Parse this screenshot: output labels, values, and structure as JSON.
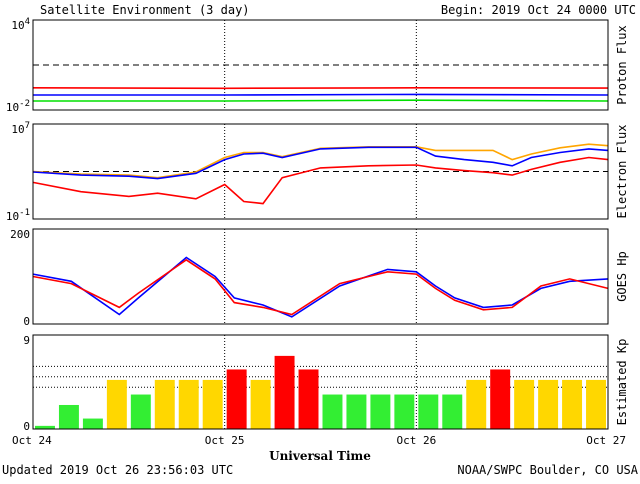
{
  "header": {
    "title": "Satellite Environment (3 day)",
    "begin": "Begin:  2019 Oct 24 0000 UTC"
  },
  "footer": {
    "updated": "Updated 2019 Oct 26 23:56:03 UTC",
    "credit": "NOAA/SWPC Boulder, CO USA"
  },
  "x_axis": {
    "title": "Universal Time",
    "ticks": [
      "Oct 24",
      "Oct 25",
      "Oct 26",
      "Oct 27"
    ]
  },
  "colors": {
    "red": "#ff0000",
    "blue": "#0000ff",
    "green": "#00e000",
    "orange": "#ffa500",
    "kp_red": "#ff0000",
    "kp_yellow": "#ffd700",
    "kp_green": "#33ee33"
  },
  "chart_data": [
    {
      "type": "line",
      "ylabel": "Proton Flux",
      "scale": "log",
      "ylim": [
        0.01,
        10000
      ],
      "ytick_labels": [
        {
          "base": "10",
          "exp": "4"
        },
        {
          "base": "10",
          "exp": "-2"
        }
      ],
      "threshold": 10,
      "x": [
        0,
        1,
        2,
        3
      ],
      "series": [
        {
          "color": "#ff0000",
          "values": [
            0.3,
            0.28,
            0.3,
            0.29
          ]
        },
        {
          "color": "#0000ff",
          "values": [
            0.1,
            0.1,
            0.11,
            0.1
          ]
        },
        {
          "color": "#00e000",
          "values": [
            0.04,
            0.04,
            0.045,
            0.04
          ]
        }
      ]
    },
    {
      "type": "line",
      "ylabel": "Electron Flux",
      "scale": "log",
      "ylim": [
        0.1,
        10000000
      ],
      "ytick_labels": [
        {
          "base": "10",
          "exp": "7"
        },
        {
          "base": "10",
          "exp": "-1"
        }
      ],
      "threshold": 1000,
      "x": [
        0,
        0.25,
        0.5,
        0.65,
        0.85,
        1.0,
        1.1,
        1.2,
        1.3,
        1.5,
        1.75,
        2.0,
        2.1,
        2.25,
        2.4,
        2.5,
        2.6,
        2.75,
        2.9,
        3.0
      ],
      "series": [
        {
          "color": "#ffa500",
          "values": [
            1000,
            600,
            500,
            300,
            900,
            15000,
            40000,
            40000,
            18000,
            90000,
            120000,
            120000,
            60000,
            60000,
            60000,
            10000,
            30000,
            100000,
            200000,
            150000
          ]
        },
        {
          "color": "#0000ff",
          "values": [
            900,
            500,
            400,
            250,
            700,
            10000,
            30000,
            35000,
            15000,
            80000,
            110000,
            110000,
            20000,
            10000,
            6000,
            3000,
            15000,
            40000,
            80000,
            60000
          ]
        },
        {
          "color": "#ff0000",
          "values": [
            120,
            20,
            8,
            15,
            5,
            80,
            3,
            2,
            300,
            2000,
            3000,
            3500,
            2000,
            1200,
            800,
            500,
            1500,
            6000,
            15000,
            10000
          ]
        }
      ]
    },
    {
      "type": "line",
      "ylabel": "GOES Hp",
      "ylim": [
        0,
        200
      ],
      "ytick_labels": [
        "200",
        "0"
      ],
      "x": [
        0,
        0.2,
        0.45,
        0.55,
        0.8,
        0.95,
        1.05,
        1.2,
        1.35,
        1.6,
        1.85,
        2.0,
        2.1,
        2.2,
        2.35,
        2.5,
        2.65,
        2.8,
        3.0
      ],
      "series": [
        {
          "color": "#0000ff",
          "values": [
            105,
            90,
            20,
            55,
            140,
            100,
            55,
            40,
            15,
            80,
            115,
            110,
            80,
            55,
            35,
            40,
            75,
            90,
            95
          ]
        },
        {
          "color": "#ff0000",
          "values": [
            100,
            85,
            35,
            65,
            135,
            95,
            45,
            35,
            20,
            85,
            110,
            105,
            75,
            50,
            30,
            35,
            80,
            95,
            75
          ]
        }
      ]
    },
    {
      "type": "bar",
      "ylabel": "Estimated Kp",
      "ylim": [
        0,
        9
      ],
      "ytick_labels": [
        "9",
        "0"
      ],
      "reference_lines": [
        4,
        5,
        6
      ],
      "values": [
        0.3,
        2.3,
        1.0,
        4.7,
        3.3,
        4.7,
        4.7,
        4.7,
        5.7,
        4.7,
        7.0,
        5.7,
        3.3,
        3.3,
        3.3,
        3.3,
        3.3,
        3.3,
        4.7,
        5.7,
        4.7,
        4.7,
        4.7,
        4.7
      ],
      "colors": [
        "g",
        "g",
        "g",
        "y",
        "g",
        "y",
        "y",
        "y",
        "r",
        "y",
        "r",
        "r",
        "g",
        "g",
        "g",
        "g",
        "g",
        "g",
        "y",
        "r",
        "y",
        "y",
        "y",
        "y"
      ]
    }
  ]
}
